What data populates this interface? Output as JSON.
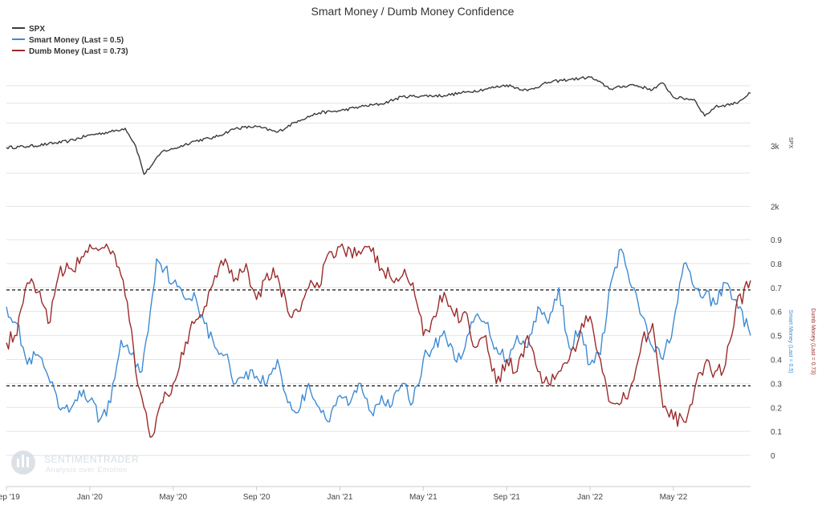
{
  "chart_data": {
    "type": "line",
    "title": "Smart Money / Dumb Money Confidence",
    "legend_position": "top-left",
    "colors": {
      "spx": "#3a3a3a",
      "smart": "#3d8bd3",
      "dumb": "#9b2b2b",
      "threshold": "#111111",
      "grid": "#e4e4e4"
    },
    "x_ticks": [
      "Sep '19",
      "Jan '20",
      "May '20",
      "Sep '20",
      "Jan '21",
      "May '21",
      "Sep '21",
      "Jan '22",
      "May '22"
    ],
    "x_tick_months": [
      0,
      4,
      8,
      12,
      16,
      20,
      24,
      28,
      32
    ],
    "x_range_months": [
      0,
      35.7
    ],
    "panels": [
      {
        "name": "spx",
        "ylabel": "SPX",
        "scale": "log",
        "y_ticks": [
          "2k",
          "3k"
        ],
        "y_tick_values": [
          2000,
          3000
        ],
        "ylim": [
          1890,
          5200
        ],
        "series": [
          {
            "name": "SPX",
            "color": "#3a3a3a",
            "points": [
              [
                0,
                2970
              ],
              [
                1,
                2990
              ],
              [
                2,
                3040
              ],
              [
                3,
                3100
              ],
              [
                4,
                3230
              ],
              [
                5,
                3300
              ],
              [
                5.7,
                3380
              ],
              [
                6.2,
                3000
              ],
              [
                6.6,
                2480
              ],
              [
                7,
                2650
              ],
              [
                7.5,
                2900
              ],
              [
                8,
                2940
              ],
              [
                9,
                3100
              ],
              [
                10,
                3180
              ],
              [
                11,
                3380
              ],
              [
                12,
                3420
              ],
              [
                13,
                3290
              ],
              [
                14,
                3560
              ],
              [
                15,
                3750
              ],
              [
                16,
                3800
              ],
              [
                17,
                3910
              ],
              [
                18,
                3980
              ],
              [
                19,
                4180
              ],
              [
                20,
                4200
              ],
              [
                21,
                4210
              ],
              [
                22,
                4300
              ],
              [
                23,
                4400
              ],
              [
                24,
                4520
              ],
              [
                25,
                4350
              ],
              [
                26,
                4600
              ],
              [
                27,
                4690
              ],
              [
                27.5,
                4720
              ],
              [
                28,
                4766
              ],
              [
                29,
                4400
              ],
              [
                30,
                4530
              ],
              [
                31,
                4380
              ],
              [
                31.5,
                4580
              ],
              [
                32,
                4160
              ],
              [
                33,
                4100
              ],
              [
                33.5,
                3670
              ],
              [
                34,
                3900
              ],
              [
                35,
                4000
              ],
              [
                35.7,
                4280
              ]
            ]
          }
        ]
      },
      {
        "name": "confidence",
        "ylabel_left": "Smart Money (Last = 0.5)",
        "ylabel_right": "Dumb Money (Last = 0.73)",
        "y_ticks": [
          "0",
          "0.1",
          "0.2",
          "0.3",
          "0.4",
          "0.5",
          "0.6",
          "0.7",
          "0.8",
          "0.9"
        ],
        "y_tick_values": [
          0,
          0.1,
          0.2,
          0.3,
          0.4,
          0.5,
          0.6,
          0.7,
          0.8,
          0.9
        ],
        "ylim": [
          -0.08,
          0.93
        ],
        "thresholds": [
          0.69,
          0.29
        ],
        "series": [
          {
            "name": "Smart Money (Last = 0.5)",
            "color": "#3d8bd3",
            "points": [
              [
                0,
                0.62
              ],
              [
                0.5,
                0.55
              ],
              [
                1,
                0.38
              ],
              [
                1.5,
                0.42
              ],
              [
                2,
                0.33
              ],
              [
                2.5,
                0.2
              ],
              [
                3,
                0.18
              ],
              [
                3.5,
                0.27
              ],
              [
                4,
                0.23
              ],
              [
                4.5,
                0.15
              ],
              [
                5,
                0.22
              ],
              [
                5.5,
                0.48
              ],
              [
                6,
                0.42
              ],
              [
                6.5,
                0.35
              ],
              [
                6.9,
                0.6
              ],
              [
                7.2,
                0.82
              ],
              [
                7.6,
                0.78
              ],
              [
                8,
                0.72
              ],
              [
                8.6,
                0.65
              ],
              [
                9,
                0.68
              ],
              [
                9.5,
                0.55
              ],
              [
                10,
                0.45
              ],
              [
                10.5,
                0.42
              ],
              [
                11,
                0.3
              ],
              [
                11.5,
                0.35
              ],
              [
                12,
                0.33
              ],
              [
                12.5,
                0.3
              ],
              [
                13,
                0.4
              ],
              [
                13.5,
                0.22
              ],
              [
                14,
                0.18
              ],
              [
                14.5,
                0.3
              ],
              [
                15,
                0.2
              ],
              [
                15.5,
                0.14
              ],
              [
                16,
                0.25
              ],
              [
                16.5,
                0.22
              ],
              [
                17,
                0.3
              ],
              [
                17.5,
                0.18
              ],
              [
                18,
                0.25
              ],
              [
                18.5,
                0.21
              ],
              [
                19,
                0.3
              ],
              [
                19.5,
                0.22
              ],
              [
                20,
                0.4
              ],
              [
                20.5,
                0.45
              ],
              [
                21,
                0.52
              ],
              [
                21.5,
                0.4
              ],
              [
                22,
                0.45
              ],
              [
                22.5,
                0.58
              ],
              [
                23,
                0.55
              ],
              [
                23.5,
                0.45
              ],
              [
                24,
                0.4
              ],
              [
                24.5,
                0.5
              ],
              [
                25,
                0.45
              ],
              [
                25.5,
                0.62
              ],
              [
                26,
                0.55
              ],
              [
                26.5,
                0.7
              ],
              [
                27,
                0.45
              ],
              [
                27.5,
                0.52
              ],
              [
                28,
                0.38
              ],
              [
                28.5,
                0.42
              ],
              [
                29,
                0.72
              ],
              [
                29.5,
                0.86
              ],
              [
                30,
                0.7
              ],
              [
                30.5,
                0.58
              ],
              [
                31,
                0.45
              ],
              [
                31.5,
                0.4
              ],
              [
                32,
                0.55
              ],
              [
                32.5,
                0.8
              ],
              [
                33,
                0.7
              ],
              [
                33.5,
                0.67
              ],
              [
                34,
                0.63
              ],
              [
                34.5,
                0.72
              ],
              [
                35,
                0.65
              ],
              [
                35.7,
                0.5
              ]
            ]
          },
          {
            "name": "Dumb Money (Last = 0.73)",
            "color": "#9b2b2b",
            "points": [
              [
                0,
                0.47
              ],
              [
                0.5,
                0.5
              ],
              [
                1,
                0.72
              ],
              [
                1.5,
                0.68
              ],
              [
                2,
                0.55
              ],
              [
                2.5,
                0.75
              ],
              [
                3,
                0.78
              ],
              [
                3.5,
                0.8
              ],
              [
                4,
                0.88
              ],
              [
                4.5,
                0.86
              ],
              [
                5,
                0.84
              ],
              [
                5.5,
                0.75
              ],
              [
                5.8,
                0.64
              ],
              [
                6.2,
                0.35
              ],
              [
                6.6,
                0.2
              ],
              [
                7,
                0.08
              ],
              [
                7.5,
                0.22
              ],
              [
                8,
                0.3
              ],
              [
                8.5,
                0.42
              ],
              [
                9,
                0.55
              ],
              [
                9.5,
                0.62
              ],
              [
                10,
                0.75
              ],
              [
                10.5,
                0.82
              ],
              [
                11,
                0.74
              ],
              [
                11.5,
                0.8
              ],
              [
                12,
                0.65
              ],
              [
                12.5,
                0.76
              ],
              [
                13,
                0.75
              ],
              [
                13.5,
                0.6
              ],
              [
                14,
                0.6
              ],
              [
                14.5,
                0.7
              ],
              [
                15,
                0.7
              ],
              [
                15.5,
                0.85
              ],
              [
                16,
                0.87
              ],
              [
                16.5,
                0.86
              ],
              [
                17,
                0.84
              ],
              [
                17.5,
                0.85
              ],
              [
                18,
                0.78
              ],
              [
                18.5,
                0.73
              ],
              [
                19,
                0.75
              ],
              [
                19.5,
                0.72
              ],
              [
                20,
                0.5
              ],
              [
                20.5,
                0.58
              ],
              [
                21,
                0.68
              ],
              [
                21.5,
                0.58
              ],
              [
                22,
                0.6
              ],
              [
                22.5,
                0.45
              ],
              [
                23,
                0.5
              ],
              [
                23.5,
                0.3
              ],
              [
                24,
                0.4
              ],
              [
                24.5,
                0.35
              ],
              [
                25,
                0.5
              ],
              [
                25.5,
                0.35
              ],
              [
                26,
                0.3
              ],
              [
                26.5,
                0.35
              ],
              [
                27,
                0.4
              ],
              [
                27.5,
                0.5
              ],
              [
                28,
                0.58
              ],
              [
                28.5,
                0.4
              ],
              [
                29,
                0.22
              ],
              [
                29.5,
                0.22
              ],
              [
                30,
                0.3
              ],
              [
                30.5,
                0.48
              ],
              [
                31,
                0.55
              ],
              [
                31.5,
                0.2
              ],
              [
                32,
                0.15
              ],
              [
                32.5,
                0.14
              ],
              [
                33,
                0.27
              ],
              [
                33.5,
                0.38
              ],
              [
                34,
                0.35
              ],
              [
                34.5,
                0.38
              ],
              [
                35,
                0.62
              ],
              [
                35.7,
                0.73
              ]
            ]
          }
        ]
      }
    ]
  },
  "watermark": {
    "brand": "SENTIMENTRADER",
    "tagline": "Analysis over Emotion"
  }
}
